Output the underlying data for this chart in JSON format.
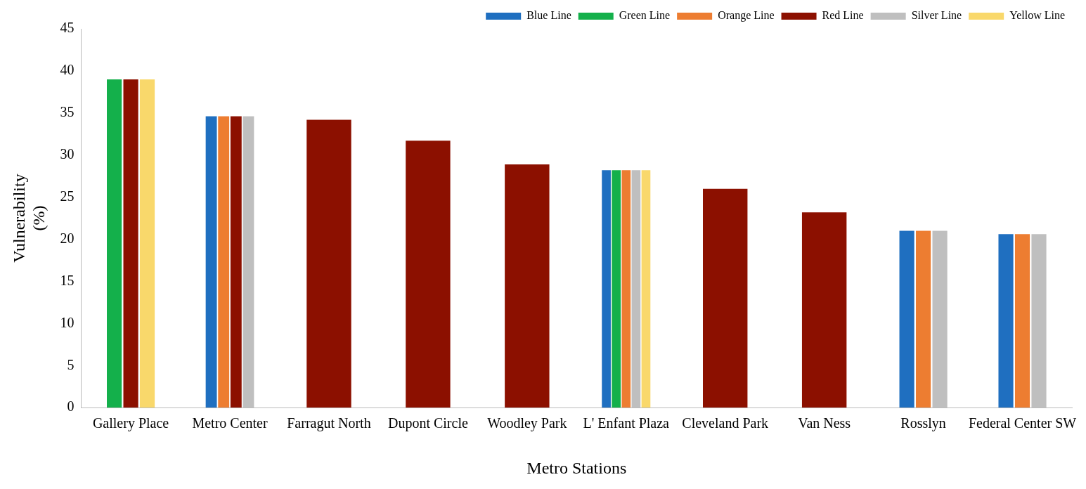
{
  "chart_data": {
    "type": "bar",
    "xlabel": "Metro Stations",
    "ylabel": "Vulnerability (%)",
    "categories": [
      "Gallery Place",
      "Metro Center",
      "Farragut North",
      "Dupont Circle",
      "Woodley Park",
      "L' Enfant Plaza",
      "Cleveland Park",
      "Van Ness",
      "Rosslyn",
      "Federal Center SW"
    ],
    "series": [
      {
        "name": "Blue Line",
        "color": "#1f6fc0",
        "values": [
          null,
          34.6,
          null,
          null,
          null,
          28.2,
          null,
          null,
          21,
          20.6
        ]
      },
      {
        "name": "Green Line",
        "color": "#14b04b",
        "values": [
          39,
          null,
          null,
          null,
          null,
          28.2,
          null,
          null,
          null,
          null
        ]
      },
      {
        "name": "Orange Line",
        "color": "#ed7d31",
        "values": [
          null,
          34.6,
          null,
          null,
          null,
          28.2,
          null,
          null,
          21,
          20.6
        ]
      },
      {
        "name": "Red Line",
        "color": "#8c1000",
        "values": [
          39,
          34.6,
          34.2,
          31.7,
          28.9,
          null,
          26,
          23.2,
          null,
          null
        ]
      },
      {
        "name": "Silver Line",
        "color": "#bfbfbf",
        "values": [
          null,
          34.6,
          null,
          null,
          null,
          28.2,
          null,
          null,
          21,
          20.6
        ]
      },
      {
        "name": "Yellow Line",
        "color": "#f9d86b",
        "values": [
          39,
          null,
          null,
          null,
          null,
          28.2,
          null,
          null,
          null,
          null
        ]
      }
    ],
    "ylim": [
      0,
      45
    ],
    "yticks": [
      0,
      5,
      10,
      15,
      20,
      25,
      30,
      35,
      40,
      45
    ],
    "grid": false,
    "legend": "top right"
  }
}
